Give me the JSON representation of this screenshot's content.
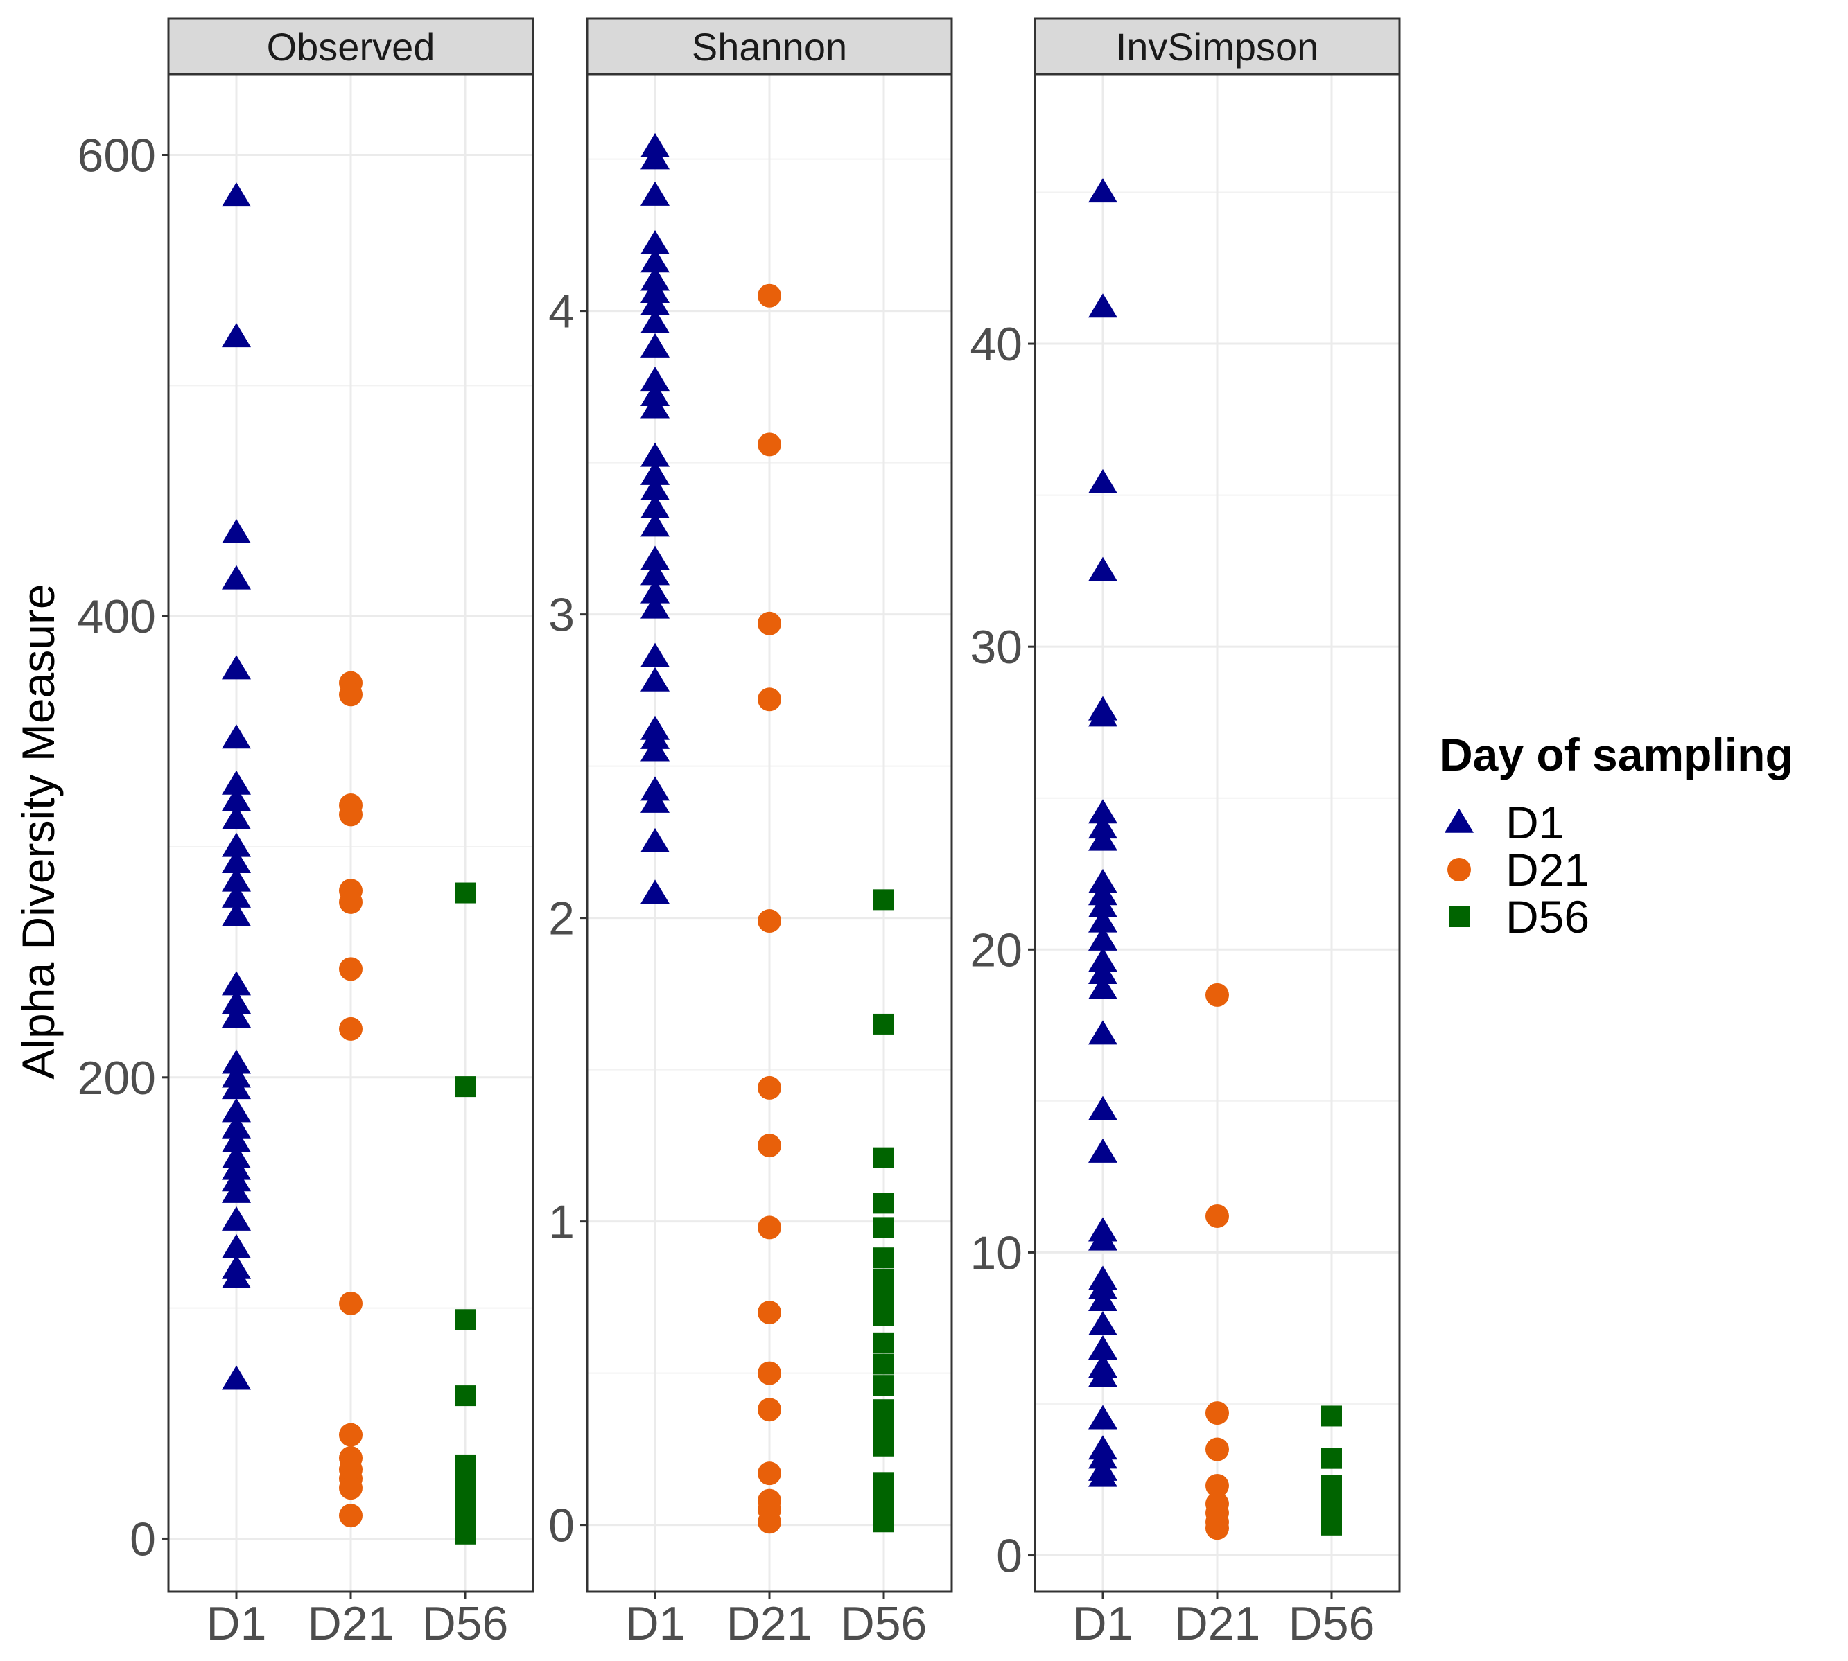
{
  "colors": {
    "D1": "#00008b",
    "D21": "#e8600a",
    "D56": "#006400",
    "strip_fill": "#d9d9d9",
    "grid": "#ebebeb",
    "panel_border": "#333333"
  },
  "chart_data": {
    "type": "scatter",
    "ylabel": "Alpha Diversity Measure",
    "xlabel": "",
    "categories": [
      "D1",
      "D21",
      "D56"
    ],
    "legend": {
      "title": "Day of sampling",
      "placement": "right",
      "entries": [
        {
          "label": "D1",
          "shape": "triangle"
        },
        {
          "label": "D21",
          "shape": "circle"
        },
        {
          "label": "D56",
          "shape": "square"
        }
      ]
    },
    "panels": [
      {
        "name": "Observed",
        "ylim": [
          -23,
          635
        ],
        "yticks": [
          0,
          200,
          400,
          600
        ],
        "minor_ticks": [
          100,
          300,
          500
        ],
        "series": {
          "D1": [
            582,
            521,
            436,
            416,
            377,
            347,
            327,
            320,
            312,
            300,
            293,
            285,
            278,
            270,
            240,
            232,
            226,
            206,
            200,
            195,
            185,
            178,
            172,
            165,
            160,
            155,
            150,
            138,
            126,
            117,
            113,
            69
          ],
          "D21": [
            371,
            366,
            318,
            314,
            281,
            276,
            247,
            221,
            102,
            45,
            35,
            30,
            26,
            22,
            10
          ],
          "D56": [
            280,
            196,
            95,
            62,
            32,
            26,
            20,
            14,
            8,
            2
          ]
        }
      },
      {
        "name": "Shannon",
        "ylim": [
          -0.22,
          4.78
        ],
        "yticks": [
          0,
          1,
          2,
          3,
          4
        ],
        "minor_ticks": [
          0.5,
          1.5,
          2.5,
          3.5,
          4.5
        ],
        "series": {
          "D1": [
            4.54,
            4.5,
            4.38,
            4.22,
            4.16,
            4.1,
            4.06,
            4.02,
            3.96,
            3.88,
            3.77,
            3.72,
            3.68,
            3.52,
            3.46,
            3.41,
            3.35,
            3.29,
            3.18,
            3.13,
            3.07,
            3.02,
            2.86,
            2.78,
            2.62,
            2.59,
            2.55,
            2.42,
            2.38,
            2.25,
            2.08
          ],
          "D21": [
            4.05,
            3.56,
            2.97,
            2.72,
            1.99,
            1.44,
            1.25,
            0.98,
            0.7,
            0.5,
            0.38,
            0.17,
            0.08,
            0.05,
            0.01
          ],
          "D56": [
            2.06,
            1.65,
            1.21,
            1.06,
            0.98,
            0.88,
            0.81,
            0.75,
            0.69,
            0.6,
            0.53,
            0.46,
            0.38,
            0.32,
            0.26,
            0.14,
            0.08,
            0.03,
            0.01
          ]
        }
      },
      {
        "name": "InvSimpson",
        "ylim": [
          -1.2,
          48.9
        ],
        "yticks": [
          0,
          10,
          20,
          30,
          40
        ],
        "minor_ticks": [
          5,
          15,
          25,
          35,
          45
        ],
        "series": {
          "D1": [
            45,
            41.2,
            35.4,
            32.5,
            27.9,
            27.7,
            24.5,
            24.0,
            23.6,
            22.2,
            21.8,
            21.4,
            20.9,
            20.3,
            19.6,
            19.2,
            18.7,
            17.2,
            14.7,
            13.3,
            10.7,
            10.4,
            9.1,
            8.8,
            8.4,
            7.6,
            6.8,
            6.2,
            5.9,
            4.5,
            3.5,
            3.2,
            2.8,
            2.6
          ],
          "D21": [
            18.5,
            11.2,
            4.7,
            3.5,
            2.3,
            1.7,
            1.4,
            1.1,
            0.9
          ],
          "D56": [
            4.6,
            3.2,
            2.3,
            1.8,
            1.4,
            1.0
          ]
        }
      }
    ]
  }
}
